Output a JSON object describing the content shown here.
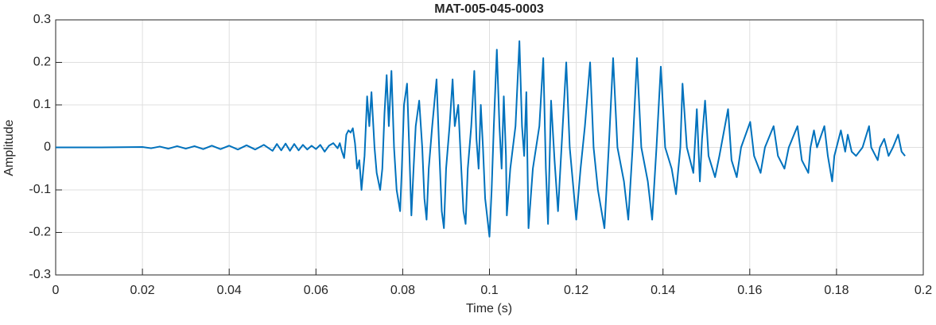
{
  "chart_data": {
    "type": "line",
    "title": "MAT-005-045-0003",
    "x_label": "Time (s)",
    "y_label": "Amplitude",
    "xlim": [
      0,
      0.2
    ],
    "ylim": [
      -0.3,
      0.3
    ],
    "xticks": [
      0,
      0.02,
      0.04,
      0.06,
      0.08,
      0.1,
      0.12,
      0.14,
      0.16,
      0.18,
      0.2
    ],
    "yticks": [
      -0.3,
      -0.2,
      -0.1,
      0,
      0.1,
      0.2,
      0.3
    ],
    "grid": true,
    "x": [
      0,
      0.01,
      0.02,
      0.022,
      0.024,
      0.026,
      0.028,
      0.03,
      0.032,
      0.034,
      0.036,
      0.038,
      0.04,
      0.042,
      0.044,
      0.046,
      0.048,
      0.05,
      0.051,
      0.052,
      0.053,
      0.054,
      0.055,
      0.056,
      0.057,
      0.058,
      0.059,
      0.06,
      0.061,
      0.062,
      0.063,
      0.064,
      0.065,
      0.0655,
      0.066,
      0.0665,
      0.067,
      0.0675,
      0.068,
      0.0685,
      0.069,
      0.0695,
      0.07,
      0.0705,
      0.0712,
      0.0718,
      0.0723,
      0.0728,
      0.0735,
      0.074,
      0.0748,
      0.0753,
      0.0758,
      0.0763,
      0.0768,
      0.0774,
      0.078,
      0.0786,
      0.0794,
      0.0798,
      0.0803,
      0.081,
      0.0815,
      0.082,
      0.0825,
      0.083,
      0.0838,
      0.0845,
      0.085,
      0.0855,
      0.086,
      0.0868,
      0.0878,
      0.0884,
      0.089,
      0.0895,
      0.09,
      0.0908,
      0.0915,
      0.092,
      0.0928,
      0.0935,
      0.094,
      0.0945,
      0.095,
      0.0958,
      0.0965,
      0.097,
      0.0975,
      0.098,
      0.0985,
      0.099,
      0.1,
      0.1005,
      0.101,
      0.1017,
      0.1023,
      0.1028,
      0.1033,
      0.1038,
      0.104,
      0.1048,
      0.106,
      0.1069,
      0.1075,
      0.108,
      0.1085,
      0.109,
      0.11,
      0.1115,
      0.1124,
      0.113,
      0.1135,
      0.1142,
      0.115,
      0.1158,
      0.1165,
      0.1177,
      0.1185,
      0.12,
      0.121,
      0.122,
      0.1232,
      0.124,
      0.125,
      0.1265,
      0.1275,
      0.1285,
      0.1295,
      0.131,
      0.132,
      0.133,
      0.134,
      0.135,
      0.1365,
      0.1375,
      0.1385,
      0.1395,
      0.1405,
      0.142,
      0.143,
      0.144,
      0.1445,
      0.1455,
      0.147,
      0.1478,
      0.1485,
      0.149,
      0.1497,
      0.1505,
      0.152,
      0.153,
      0.155,
      0.1558,
      0.157,
      0.158,
      0.1601,
      0.161,
      0.1625,
      0.1635,
      0.1655,
      0.1665,
      0.168,
      0.169,
      0.171,
      0.172,
      0.1735,
      0.174,
      0.1748,
      0.1755,
      0.1772,
      0.178,
      0.179,
      0.1795,
      0.181,
      0.182,
      0.1826,
      0.1835,
      0.1845,
      0.186,
      0.1875,
      0.188,
      0.1895,
      0.19,
      0.191,
      0.192,
      0.193,
      0.1942,
      0.195,
      0.1958
    ],
    "series": [
      {
        "color": "#0072bd",
        "values": [
          0,
          0,
          0.001,
          -0.002,
          0.002,
          -0.003,
          0.003,
          -0.003,
          0.003,
          -0.004,
          0.004,
          -0.004,
          0.004,
          -0.005,
          0.005,
          -0.005,
          0.006,
          -0.008,
          0.008,
          -0.007,
          0.009,
          -0.008,
          0.008,
          -0.007,
          0.006,
          -0.005,
          0.004,
          -0.004,
          0.006,
          -0.01,
          0.004,
          0.01,
          -0.002,
          0.01,
          -0.01,
          -0.025,
          0.03,
          0.04,
          0.035,
          0.045,
          0.01,
          -0.05,
          -0.03,
          -0.1,
          -0.02,
          0.12,
          0.05,
          0.13,
          0,
          -0.06,
          -0.1,
          -0.05,
          0.08,
          0.17,
          0.05,
          0.18,
          0,
          -0.1,
          -0.15,
          -0.05,
          0.1,
          0.15,
          0,
          -0.16,
          -0.05,
          0.05,
          0.11,
          0,
          -0.12,
          -0.17,
          -0.05,
          0.05,
          0.16,
          0,
          -0.15,
          -0.19,
          -0.05,
          0.05,
          0.16,
          0.05,
          0.1,
          -0.05,
          -0.15,
          -0.18,
          -0.05,
          0.05,
          0.18,
          0.02,
          -0.05,
          0.1,
          0,
          -0.12,
          -0.21,
          -0.1,
          0.05,
          0.23,
          0.05,
          -0.05,
          0.12,
          -0.02,
          -0.16,
          -0.05,
          0.05,
          0.25,
          0.05,
          -0.02,
          0.13,
          -0.19,
          -0.05,
          0.05,
          0.21,
          -0.05,
          -0.18,
          0.11,
          -0.03,
          -0.15,
          -0.02,
          0.2,
          0,
          -0.17,
          -0.05,
          0.05,
          0.2,
          0,
          -0.1,
          -0.19,
          0,
          0.21,
          0,
          -0.08,
          -0.17,
          0,
          0.21,
          0,
          -0.08,
          -0.17,
          0,
          0.19,
          0,
          -0.05,
          -0.11,
          0,
          0.15,
          0,
          -0.06,
          0.09,
          -0.08,
          0.02,
          0.11,
          -0.02,
          -0.07,
          -0.02,
          0.09,
          -0.03,
          -0.07,
          0,
          0.06,
          -0.02,
          -0.06,
          0,
          0.05,
          -0.02,
          -0.05,
          0,
          0.05,
          -0.03,
          -0.06,
          0,
          0.04,
          0,
          0.05,
          -0.02,
          -0.08,
          -0.02,
          0.04,
          -0.01,
          0.03,
          -0.01,
          -0.02,
          0,
          0.05,
          0,
          -0.03,
          0,
          0.02,
          -0.02,
          0,
          0.03,
          -0.01,
          -0.02
        ]
      }
    ]
  }
}
